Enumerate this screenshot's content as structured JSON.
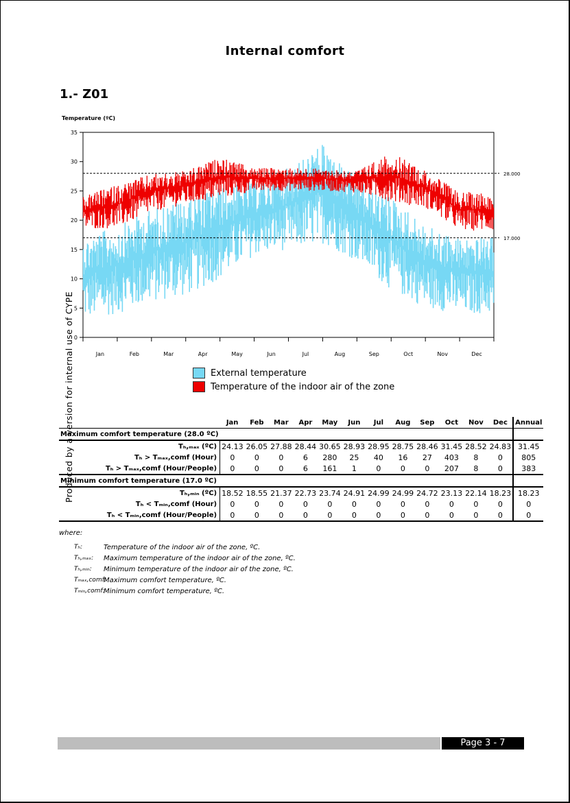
{
  "page": {
    "title": "Internal comfort",
    "section": "1.- Z01",
    "watermark": "Produced by a version for internal use of CYPE",
    "page_number": "Page 3 - 7"
  },
  "chart_data": {
    "type": "line",
    "ylabel": "Temperature (ºC)",
    "xlabel": "",
    "ylim": [
      0,
      35
    ],
    "yticks": [
      0,
      5,
      10,
      15,
      20,
      25,
      30,
      35
    ],
    "categories": [
      "Jan",
      "Feb",
      "Mar",
      "Apr",
      "May",
      "Jun",
      "Jul",
      "Aug",
      "Sep",
      "Oct",
      "Nov",
      "Dec"
    ],
    "reference_lines": [
      {
        "value": 28.0,
        "label": "28.000"
      },
      {
        "value": 17.0,
        "label": "17.000"
      }
    ],
    "series": [
      {
        "name": "External temperature",
        "color": "#77d8f4",
        "monthly_min": [
          3,
          4,
          6,
          7,
          10,
          14,
          15,
          16,
          13,
          8,
          5,
          4
        ],
        "monthly_max": [
          17,
          19,
          22,
          24,
          26,
          27,
          29,
          33,
          27,
          24,
          19,
          17
        ]
      },
      {
        "name": "Temperature of the indoor air of the zone",
        "color": "#ee0000",
        "monthly_min": [
          18.5,
          18.6,
          21.4,
          22.7,
          23.7,
          24.9,
          25.0,
          25.0,
          24.7,
          23.1,
          22.1,
          18.2
        ],
        "monthly_max": [
          24.1,
          26.1,
          27.9,
          28.4,
          30.7,
          28.9,
          29.0,
          28.8,
          28.5,
          31.5,
          28.5,
          24.8
        ]
      }
    ]
  },
  "table": {
    "columns": [
      "Jan",
      "Feb",
      "Mar",
      "Apr",
      "May",
      "Jun",
      "Jul",
      "Aug",
      "Sep",
      "Oct",
      "Nov",
      "Dec",
      "Annual"
    ],
    "max_group": "Maximum comfort temperature (28.0 ºC)",
    "min_group": "Minimum comfort temperature (17.0 ºC)",
    "rows_max": [
      {
        "label": "Tₕ,ₘₐₓ (ºC)",
        "values": [
          "24.13",
          "26.05",
          "27.88",
          "28.44",
          "30.65",
          "28.93",
          "28.95",
          "28.75",
          "28.46",
          "31.45",
          "28.52",
          "24.83",
          "31.45"
        ]
      },
      {
        "label": "Tₕ > Tₘₐₓ,comf (Hour)",
        "values": [
          "0",
          "0",
          "0",
          "6",
          "280",
          "25",
          "40",
          "16",
          "27",
          "403",
          "8",
          "0",
          "805"
        ]
      },
      {
        "label": "Tₕ > Tₘₐₓ,comf (Hour/People)",
        "values": [
          "0",
          "0",
          "0",
          "6",
          "161",
          "1",
          "0",
          "0",
          "0",
          "207",
          "8",
          "0",
          "383"
        ]
      }
    ],
    "rows_min": [
      {
        "label": "Tₕ,ₘᵢₙ (ºC)",
        "values": [
          "18.52",
          "18.55",
          "21.37",
          "22.73",
          "23.74",
          "24.91",
          "24.99",
          "24.99",
          "24.72",
          "23.13",
          "22.14",
          "18.23",
          "18.23"
        ]
      },
      {
        "label": "Tₕ < Tₘᵢₙ,comf (Hour)",
        "values": [
          "0",
          "0",
          "0",
          "0",
          "0",
          "0",
          "0",
          "0",
          "0",
          "0",
          "0",
          "0",
          "0"
        ]
      },
      {
        "label": "Tₕ < Tₘᵢₙ,comf (Hour/People)",
        "values": [
          "0",
          "0",
          "0",
          "0",
          "0",
          "0",
          "0",
          "0",
          "0",
          "0",
          "0",
          "0",
          "0"
        ]
      }
    ]
  },
  "legend_notes": {
    "where": "where:",
    "items": [
      {
        "symbol": "Tₕ:",
        "text": "Temperature of the indoor air of the zone, ºC."
      },
      {
        "symbol": "Tₕ,ₘₐₓ:",
        "text": "Maximum temperature of the indoor air of the zone, ºC."
      },
      {
        "symbol": "Tₕ,ₘᵢₙ:",
        "text": "Minimum temperature of the indoor air of the zone, ºC."
      },
      {
        "symbol": "Tₘₐₓ,comf:",
        "text": "Maximum comfort temperature, ºC."
      },
      {
        "symbol": "Tₘᵢₙ,comf:",
        "text": "Minimum comfort temperature, ºC."
      }
    ]
  }
}
